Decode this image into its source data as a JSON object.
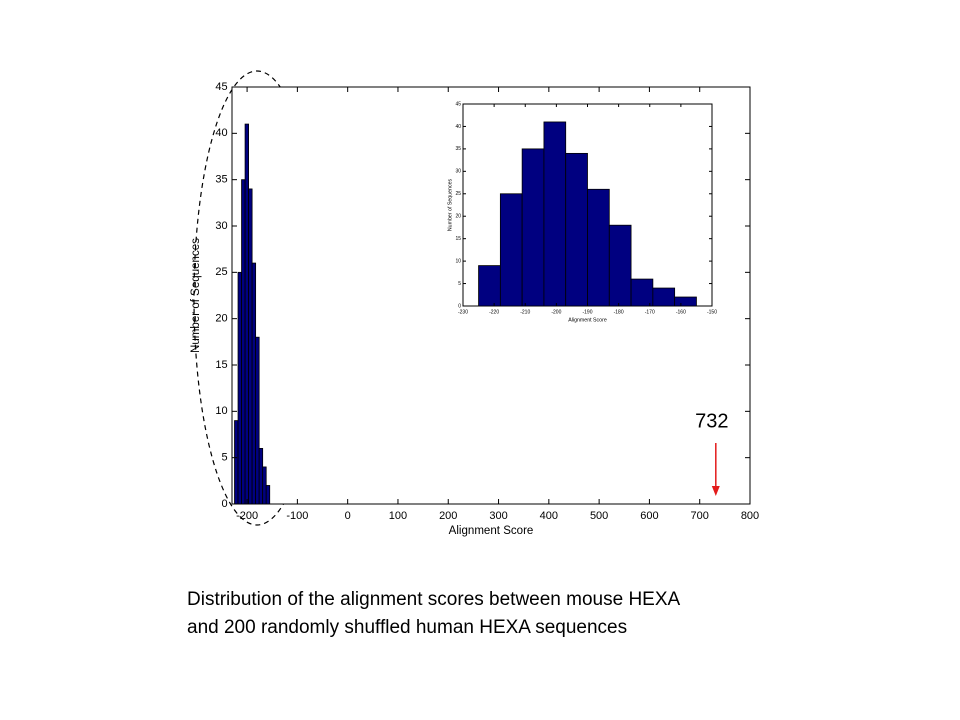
{
  "chart_data": [
    {
      "type": "histogram",
      "xlabel": "Alignment Score",
      "ylabel": "Number of Sequences",
      "bins": [
        -225,
        -218,
        -211,
        -204,
        -197,
        -190,
        -183,
        -176,
        -169,
        -162,
        -155
      ],
      "counts": [
        9,
        25,
        35,
        41,
        34,
        26,
        18,
        6,
        4,
        2
      ],
      "color": "#000080",
      "xlim": [
        -230,
        800
      ],
      "xticks": [
        -200,
        -100,
        0,
        100,
        200,
        300,
        400,
        500,
        600,
        700,
        800
      ],
      "ylim": [
        0,
        45
      ],
      "yticks": [
        0,
        5,
        10,
        15,
        20,
        25,
        30,
        35,
        40,
        45
      ],
      "annotation": {
        "x": 732,
        "color": "#e31b1b"
      }
    },
    {
      "type": "histogram",
      "xlabel": "Alignment Score",
      "ylabel": "Number of Sequences",
      "bins": [
        -225,
        -218,
        -211,
        -204,
        -197,
        -190,
        -183,
        -176,
        -169,
        -162,
        -155
      ],
      "counts": [
        9,
        25,
        35,
        41,
        34,
        26,
        18,
        6,
        4,
        2
      ],
      "color": "#000080",
      "xlim": [
        -230,
        -150
      ],
      "xticks": [
        -230,
        -220,
        -210,
        -200,
        -190,
        -180,
        -170,
        -160,
        -150
      ],
      "ylim": [
        0,
        45
      ],
      "yticks": [
        0,
        5,
        10,
        15,
        20,
        25,
        30,
        35,
        40,
        45
      ]
    }
  ],
  "caption": [
    "Distribution of the alignment scores between mouse HEXA",
    "and 200 randomly shuffled human HEXA sequences"
  ]
}
